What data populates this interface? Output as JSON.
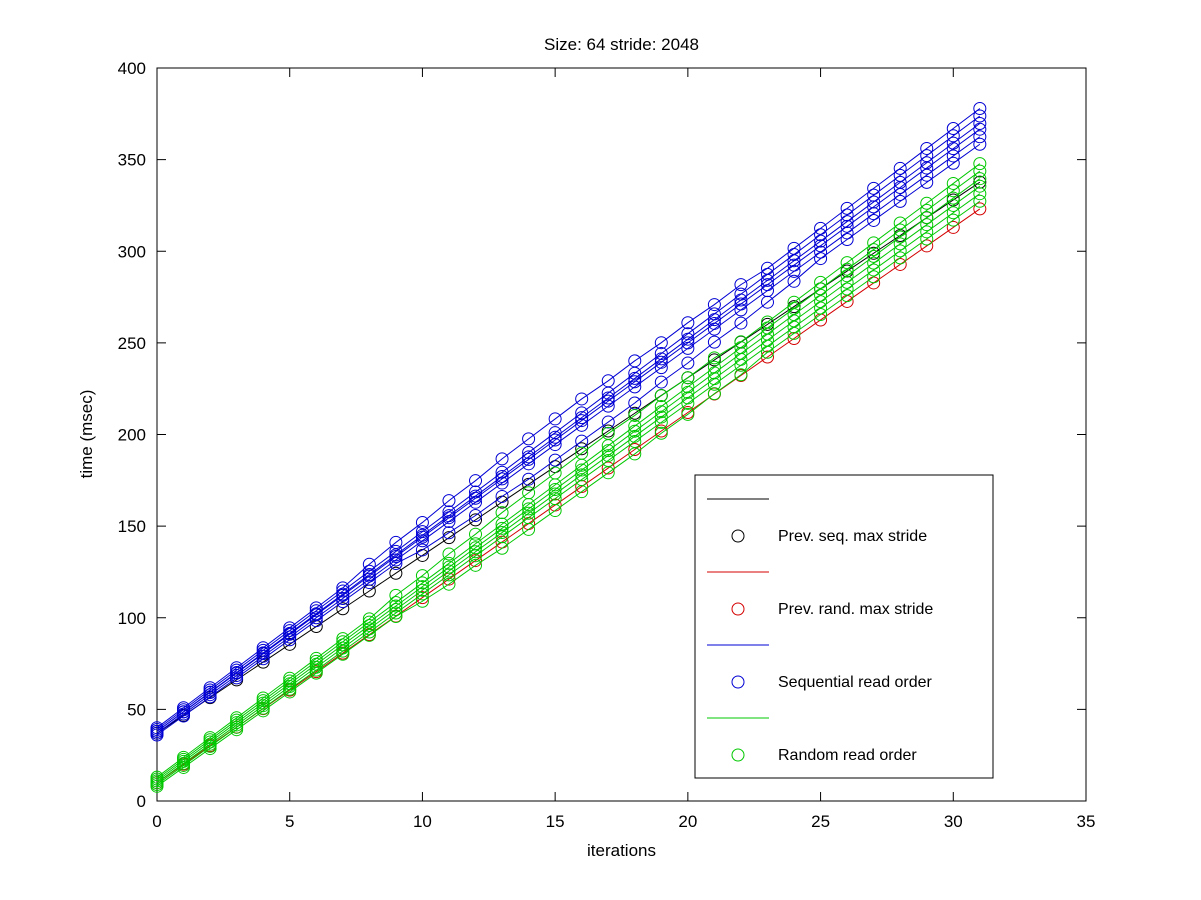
{
  "chart_data": {
    "type": "line",
    "title": "Size: 64 stride: 2048",
    "xlabel": "iterations",
    "ylabel": "time (msec)",
    "xlim": [
      0,
      35
    ],
    "ylim": [
      0,
      400
    ],
    "xticks": [
      0,
      5,
      10,
      15,
      20,
      25,
      30,
      35
    ],
    "yticks": [
      0,
      50,
      100,
      150,
      200,
      250,
      300,
      350,
      400
    ],
    "grid": false,
    "marker": "circle",
    "legend_position": "lower-right-inside",
    "colors": {
      "black": "#000000",
      "red": "#d40000",
      "blue": "#0000d4",
      "green": "#00c800"
    },
    "x": [
      0,
      1,
      2,
      3,
      4,
      5,
      6,
      7,
      8,
      9,
      10,
      11,
      12,
      13,
      14,
      15,
      16,
      17,
      18,
      19,
      20,
      21,
      22,
      23,
      24,
      25,
      26,
      27,
      28,
      29,
      30,
      31
    ],
    "series": [
      {
        "name": "prev-seq-max-stride",
        "group": "Prev. seq. max stride",
        "color": "#000000",
        "y": [
          37,
          46.7,
          56.4,
          66.1,
          75.8,
          85.5,
          95.2,
          104.9,
          114.6,
          124.3,
          134,
          143.7,
          153.4,
          163.1,
          172.8,
          182.5,
          192.2,
          201.9,
          211.6,
          221.3,
          231,
          240.7,
          250.4,
          260.1,
          269.8,
          279.5,
          289.2,
          298.9,
          308.6,
          318.3,
          328,
          337.7
        ]
      },
      {
        "name": "prev-rand-max-stride",
        "group": "Prev. rand. max stride",
        "color": "#d40000",
        "y": [
          10,
          20.1,
          30.2,
          40.3,
          50.4,
          60.5,
          70.6,
          80.7,
          90.8,
          100.9,
          111,
          121.1,
          131.2,
          141.3,
          151.4,
          161.5,
          171.6,
          181.7,
          191.8,
          201.9,
          212,
          222.1,
          232.2,
          242.3,
          252.4,
          262.5,
          272.6,
          282.7,
          292.8,
          302.9,
          313,
          323.1
        ]
      },
      {
        "name": "sequential-run-1",
        "group": "Sequential read order",
        "color": "#0000d4",
        "y": [
          36,
          46.4,
          56.8,
          67.2,
          77.6,
          88,
          98.4,
          108.8,
          119.2,
          129.6,
          137,
          146.4,
          155.8,
          166.2,
          175.6,
          186,
          196.4,
          206.8,
          217.2,
          228.6,
          239,
          250.4,
          260.8,
          272.2,
          283.6,
          296,
          306.4,
          316.8,
          327.2,
          337.6,
          348,
          358.4
        ]
      },
      {
        "name": "sequential-run-2",
        "group": "Sequential read order",
        "color": "#0000d4",
        "y": [
          37,
          47.5,
          58,
          68.5,
          79,
          89.5,
          100,
          110.5,
          121,
          131.5,
          142,
          152.5,
          163,
          173.5,
          184,
          194.5,
          205,
          215.5,
          226,
          236.5,
          247,
          257.5,
          268,
          278.5,
          289,
          299.5,
          310,
          320.5,
          331,
          341.5,
          352,
          362.5
        ]
      },
      {
        "name": "sequential-run-3",
        "group": "Sequential read order",
        "color": "#0000d4",
        "y": [
          38,
          48.6,
          59.2,
          69.8,
          80.4,
          91,
          101.6,
          112.2,
          122.8,
          133.4,
          144,
          154.6,
          165.2,
          175.8,
          186.4,
          197,
          207.6,
          218.2,
          228.8,
          239.4,
          250,
          260.6,
          271.2,
          281.8,
          292.4,
          303,
          313.6,
          324.2,
          334.8,
          345.4,
          356,
          366.6
        ]
      },
      {
        "name": "sequential-run-4",
        "group": "Sequential read order",
        "color": "#0000d4",
        "y": [
          38,
          48.7,
          59.4,
          70.1,
          80.8,
          91.5,
          102.2,
          112.9,
          123.6,
          134.3,
          145,
          155.7,
          166.4,
          177.1,
          187.8,
          198.5,
          209.2,
          219.9,
          230.6,
          241.3,
          252,
          262.7,
          273.4,
          284.1,
          294.8,
          305.5,
          316.2,
          326.9,
          337.6,
          348.3,
          359,
          369.7
        ]
      },
      {
        "name": "sequential-run-5",
        "group": "Sequential read order",
        "color": "#0000d4",
        "y": [
          39,
          49.8,
          60.6,
          71.4,
          82.2,
          93,
          103.8,
          114.6,
          125.4,
          136.2,
          147,
          157.8,
          168.6,
          179.4,
          190.2,
          201,
          211.8,
          222.6,
          233.4,
          244.2,
          255,
          265.8,
          276.6,
          287.4,
          298.2,
          309,
          319.8,
          330.6,
          341.4,
          352.2,
          363,
          373.8
        ]
      },
      {
        "name": "sequential-run-6",
        "group": "Sequential read order",
        "color": "#0000d4",
        "y": [
          40,
          50.9,
          61.8,
          72.7,
          83.6,
          94.5,
          105.4,
          116.3,
          129.2,
          141.1,
          152,
          163.9,
          174.8,
          186.7,
          197.6,
          208.5,
          219.4,
          229.3,
          240.2,
          250.1,
          261,
          270.9,
          281.8,
          290.7,
          301.6,
          312.5,
          323.4,
          334.3,
          345.2,
          356.1,
          367,
          377.9
        ]
      },
      {
        "name": "random-run-1",
        "group": "Random read order",
        "color": "#00c800",
        "y": [
          8,
          18.3,
          28.6,
          38.9,
          49.2,
          59.5,
          69.8,
          80.1,
          90.4,
          100.7,
          109,
          118.3,
          128.6,
          137.9,
          148.2,
          158.5,
          168.8,
          179.1,
          189.4,
          200.7,
          211,
          222.3,
          232.6,
          244.9,
          255.2,
          265.5,
          275.8,
          286.1,
          296.4,
          306.7,
          317,
          327.3
        ]
      },
      {
        "name": "random-run-2",
        "group": "Random read order",
        "color": "#00c800",
        "y": [
          9,
          19.4,
          29.8,
          40.2,
          50.6,
          61,
          71.4,
          81.8,
          92.2,
          102.6,
          113,
          123.4,
          133.8,
          144.2,
          154.6,
          165,
          175.4,
          185.8,
          196.2,
          206.6,
          217,
          227.4,
          237.8,
          248.2,
          258.6,
          269,
          279.4,
          289.8,
          300.2,
          310.6,
          321,
          331.4
        ]
      },
      {
        "name": "random-run-3",
        "group": "Random read order",
        "color": "#00c800",
        "y": [
          10,
          20.5,
          31,
          41.5,
          52,
          62.5,
          73,
          83.5,
          94,
          104.5,
          115,
          125.5,
          136,
          146.5,
          157,
          167.5,
          178,
          188.5,
          199,
          209.5,
          220,
          230.5,
          241,
          251.5,
          262,
          272.5,
          283,
          293.5,
          304,
          314.5,
          325,
          335.5
        ]
      },
      {
        "name": "random-run-4",
        "group": "Random read order",
        "color": "#00c800",
        "y": [
          11,
          21.6,
          32.2,
          42.8,
          53.4,
          64,
          74.6,
          85.2,
          95.8,
          106.4,
          117,
          127.6,
          138.2,
          148.8,
          159.4,
          170,
          180.6,
          191.2,
          201.8,
          212.4,
          223,
          233.6,
          244.2,
          254.8,
          265.4,
          276,
          286.6,
          297.2,
          307.8,
          318.4,
          329,
          339.6
        ]
      },
      {
        "name": "random-run-5",
        "group": "Random read order",
        "color": "#00c800",
        "y": [
          12,
          22.7,
          33.4,
          44.1,
          54.8,
          65.5,
          76.2,
          86.9,
          97.6,
          108.3,
          119,
          129.7,
          140.4,
          151.1,
          161.8,
          172.5,
          183.2,
          193.9,
          204.6,
          215.3,
          226,
          236.7,
          247.4,
          258.1,
          268.8,
          279.5,
          290.2,
          300.9,
          311.6,
          322.3,
          333,
          343.7
        ]
      },
      {
        "name": "random-run-6",
        "group": "Random read order",
        "color": "#00c800",
        "y": [
          13,
          23.8,
          34.6,
          45.4,
          56.2,
          67,
          77.8,
          88.6,
          99.4,
          112.2,
          123,
          134.8,
          145.6,
          157.4,
          168.2,
          179,
          189.8,
          200.6,
          210.4,
          221.2,
          231,
          241.8,
          250.6,
          261.4,
          272.2,
          283,
          293.8,
          304.6,
          315.4,
          326.2,
          337,
          347.8
        ]
      }
    ],
    "legend": [
      {
        "label": "Prev. seq. max stride",
        "color": "#000000"
      },
      {
        "label": "Prev. rand. max stride",
        "color": "#d40000"
      },
      {
        "label": "Sequential read order",
        "color": "#0000d4"
      },
      {
        "label": "Random read order",
        "color": "#00c800"
      }
    ]
  }
}
